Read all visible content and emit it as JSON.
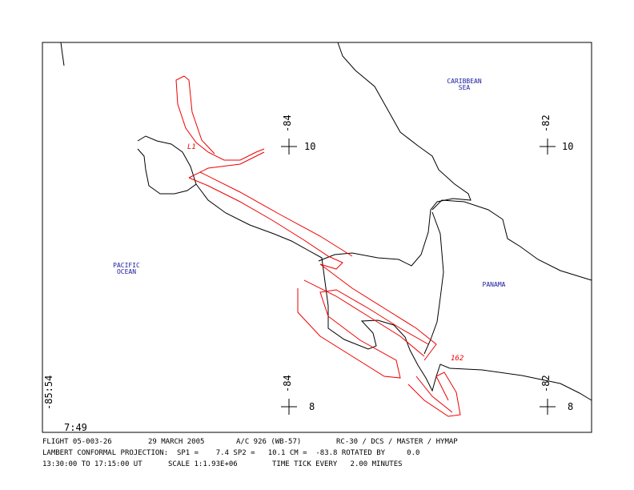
{
  "map": {
    "labels": {
      "caribbean": "CARIBBEAN",
      "sea": "SEA",
      "pacific": "PACIFIC",
      "ocean": "OCEAN",
      "panama": "PANAMA"
    },
    "grid": {
      "lon_top_left": "-84",
      "lat_top_left": "10",
      "lon_top_right": "-82",
      "lat_top_right": "10",
      "lon_bottom_left": "-84",
      "lat_bottom_left": "8",
      "lon_bottom_right": "-82",
      "lat_bottom_right": "8",
      "corner_lon": "-85:54"
    },
    "time_start": "7:49",
    "track_labels": {
      "start": "L1",
      "end": "162"
    }
  },
  "footer": {
    "line1": [
      "FLIGHT 05-003-26",
      "29 MARCH 2005",
      "A/C 926 (WB-57)",
      "RC-30 / DCS / MASTER / HYMAP"
    ],
    "line2": "LAMBERT CONFORMAL PROJECTION:  SP1 =    7.4 SP2 =   10.1 CM =  -83.8 ROTATED BY     0.0",
    "line3": [
      "13:30:00 TO 17:15:00 UT",
      "SCALE 1:1.93E+06",
      "TIME TICK EVERY   2.00 MINUTES"
    ]
  }
}
